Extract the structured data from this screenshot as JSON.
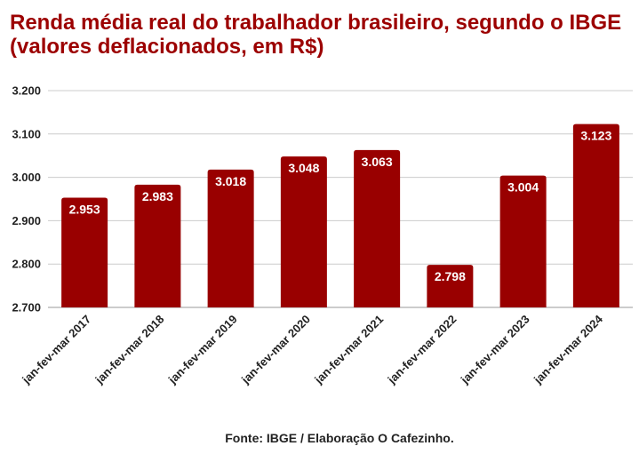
{
  "title": "Renda média real do trabalhador brasileiro, segundo o IBGE (valores deflacionados, em R$)",
  "source": "Fonte: IBGE / Elaboração O Cafezinho.",
  "chart_data": {
    "type": "bar",
    "categories": [
      "jan-fev-mar 2017",
      "jan-fev-mar 2018",
      "jan-fev-mar 2019",
      "jan-fev-mar 2020",
      "jan-fev-mar 2021",
      "jan-fev-mar 2022",
      "jan-fev-mar 2023",
      "jan-fev-mar 2024"
    ],
    "values": [
      2953,
      2983,
      3018,
      3048,
      3063,
      2798,
      3004,
      3123
    ],
    "value_labels": [
      "2.953",
      "2.983",
      "3.018",
      "3.048",
      "3.063",
      "2.798",
      "3.004",
      "3.123"
    ],
    "yticks": [
      2700,
      2800,
      2900,
      3000,
      3100,
      3200
    ],
    "ytick_labels": [
      "2.700",
      "2.800",
      "2.900",
      "3.000",
      "3.100",
      "3.200"
    ],
    "ylim": [
      2700,
      3200
    ],
    "grid": true,
    "bar_color": "#990000",
    "title_color": "#9c0000"
  }
}
